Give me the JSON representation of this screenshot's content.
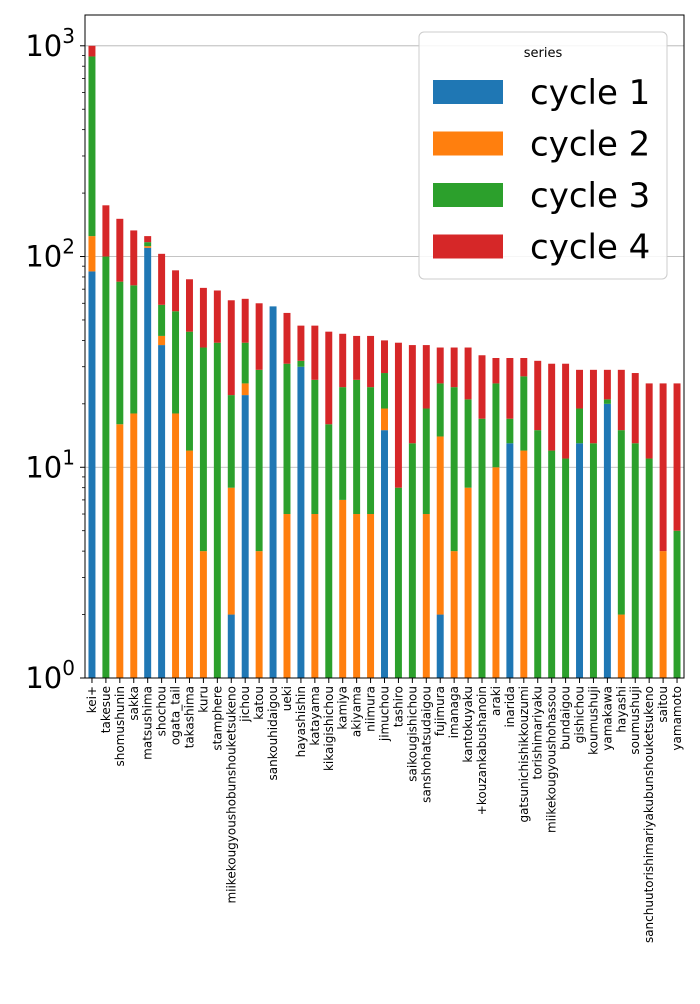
{
  "chart_data": {
    "type": "bar",
    "stacked": true,
    "yscale": "log",
    "ylim": [
      1,
      1400
    ],
    "grid": "y-major",
    "legend": {
      "title": "series",
      "placement": "top-right"
    },
    "y_ticks": [
      {
        "value": 1,
        "base": "10",
        "exp": "0"
      },
      {
        "value": 10,
        "base": "10",
        "exp": "1"
      },
      {
        "value": 100,
        "base": "10",
        "exp": "2"
      },
      {
        "value": 1000,
        "base": "10",
        "exp": "3"
      }
    ],
    "categories": [
      "kei+",
      "takesue",
      "shomushunin",
      "sakka",
      "matsushima",
      "shochou",
      "ogata_tail",
      "takashima",
      "kuru",
      "stamphere",
      "miikekougyoushobunshouketsukeno",
      "jichou",
      "katou",
      "sankouhidaigou",
      "ueki",
      "hayashishin",
      "katayama",
      "kikaigishichou",
      "kamiya",
      "akiyama",
      "niimura",
      "jimuchou",
      "tashiro",
      "saikougishichou",
      "sanshohatsudaigou",
      "fujimura",
      "imanaga",
      "kantokuyaku",
      "+kouzankabushanoin",
      "araki",
      "inarida",
      "gatsunichishikkouzumi",
      "torishimariyaku",
      "miikekougyoushohassou",
      "bundaigou",
      "gishichou",
      "koumushuji",
      "yamakawa",
      "hayashi",
      "soumushuji",
      "sanchuutorishimariyakubunshouketsukeno",
      "saitou",
      "yamamoto"
    ],
    "series": [
      {
        "name": "cycle 1",
        "color": "#1f77b4",
        "values": [
          85,
          0,
          0,
          0,
          110,
          38,
          0,
          0,
          0,
          0,
          2,
          22,
          0,
          58,
          0,
          30,
          0,
          0,
          0,
          0,
          0,
          15,
          0,
          0,
          0,
          2,
          0,
          0,
          0,
          0,
          13,
          0,
          0,
          0,
          0,
          13,
          0,
          20,
          0,
          0,
          0,
          0,
          0
        ]
      },
      {
        "name": "cycle 2",
        "color": "#ff7f0e",
        "values": [
          40,
          0,
          16,
          18,
          2,
          4,
          18,
          12,
          4,
          0,
          6,
          3,
          4,
          0,
          6,
          0,
          6,
          0,
          7,
          6,
          6,
          4,
          0,
          0,
          6,
          12,
          4,
          8,
          0,
          10,
          0,
          12,
          0,
          0,
          0,
          0,
          0,
          0,
          2,
          0,
          0,
          4,
          0
        ]
      },
      {
        "name": "cycle 3",
        "color": "#2ca02c",
        "values": [
          765,
          100,
          60,
          55,
          5,
          17,
          37,
          32,
          33,
          39,
          14,
          14,
          25,
          0,
          25,
          2,
          20,
          16,
          17,
          20,
          18,
          9,
          8,
          13,
          13,
          11,
          20,
          13,
          17,
          15,
          4,
          15,
          15,
          12,
          11,
          6,
          13,
          1,
          13,
          13,
          11,
          0,
          5
        ]
      },
      {
        "name": "cycle 4",
        "color": "#d62728",
        "values": [
          110,
          75,
          75,
          60,
          8,
          44,
          31,
          34,
          34,
          30,
          40,
          24,
          31,
          0,
          23,
          15,
          21,
          28,
          19,
          16,
          18,
          12,
          31,
          25,
          19,
          12,
          13,
          16,
          17,
          8,
          16,
          6,
          17,
          19,
          20,
          10,
          16,
          8,
          14,
          15,
          14,
          21,
          20
        ]
      }
    ]
  }
}
